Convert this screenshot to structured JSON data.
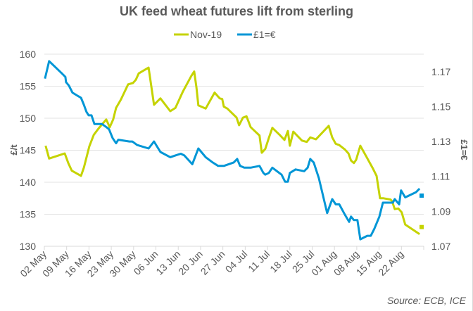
{
  "chart_data": {
    "type": "line",
    "title": "UK feed wheat futures lift from sterling",
    "ylabel_left": "£/t",
    "ylabel_right": "£1=€",
    "source": "Source: ECB, ICE",
    "legend_position": "top-center",
    "grid": true,
    "ylim_left": [
      130,
      160
    ],
    "ylim_right": [
      1.07,
      1.18
    ],
    "yticks_left": [
      "130",
      "135",
      "140",
      "145",
      "150",
      "155",
      "160"
    ],
    "yticks_right": [
      "1.07",
      "1.09",
      "1.11",
      "1.13",
      "1.15",
      "1.17"
    ],
    "x_start_date": "02 May",
    "x_range_days": [
      0,
      119
    ],
    "x_tick_labels": [
      "02 May",
      "09 May",
      "16 May",
      "23 May",
      "30 May",
      "06 Jun",
      "13 Jun",
      "20 Jun",
      "27 Jun",
      "04 Jul",
      "11 Jul",
      "18 Jul",
      "25 Jul",
      "01 Aug",
      "08 Aug",
      "15 Aug",
      "22 Aug"
    ],
    "series": [
      {
        "name": "Nov-19",
        "axis": "left",
        "color": "#c5d300",
        "days": [
          0.4,
          1.5,
          6.4,
          7.5,
          8.6,
          11.5,
          12.4,
          14.1,
          15.5,
          17,
          19.4,
          20.5,
          21.6,
          22.5,
          24,
          26.3,
          27.8,
          28.7,
          29.6,
          32.7,
          34.4,
          36.4,
          39.5,
          41.1,
          43.5,
          46.1,
          47,
          47.7,
          48.3,
          50.6,
          53.4,
          55,
          55.8,
          56.3,
          57.4,
          60.3,
          61.1,
          62.3,
          63.4,
          64.7,
          67.5,
          68.2,
          69.3,
          70.4,
          71.5,
          74,
          75.3,
          76.4,
          77,
          78.1,
          80.8,
          82.3,
          83.4,
          85.2,
          89.2,
          90.3,
          91.4,
          92.5,
          94.3,
          95.4,
          96.2,
          97.1,
          97.8,
          99.1,
          100.9,
          103.1,
          104.2,
          105.3,
          106.4,
          108.6,
          109.1,
          109.9,
          111,
          112.1,
          113.2,
          117.7
        ],
        "values": [
          145.7,
          143.7,
          144.5,
          143.0,
          141.8,
          141.0,
          142.3,
          145.6,
          147.4,
          148.4,
          149.8,
          148.6,
          149.8,
          151.6,
          152.9,
          155.3,
          155.5,
          156.0,
          157.0,
          157.9,
          152.1,
          153.1,
          151.1,
          151.6,
          154.2,
          156.6,
          157.3,
          154.8,
          152.0,
          151.5,
          154.0,
          153.1,
          153.0,
          151.8,
          151.5,
          150.1,
          148.9,
          150.1,
          150.3,
          148.6,
          147.3,
          144.6,
          145.2,
          146.9,
          148.5,
          147.3,
          146.6,
          148.0,
          145.7,
          147.9,
          146.5,
          146.3,
          147.0,
          146.7,
          148.8,
          147.0,
          146.0,
          145.8,
          145.1,
          144.5,
          143.4,
          143.0,
          143.5,
          145.7,
          144.1,
          142.1,
          141.0,
          137.5,
          137.5,
          137.3,
          137.0,
          135.8,
          135.9,
          135.3,
          133.4,
          131.9
        ],
        "latest_marker": 133.0
      },
      {
        "name": "£1=€",
        "axis": "right",
        "color": "#0096d6",
        "days": [
          0.2,
          1.5,
          5.5,
          6.6,
          6.8,
          7.7,
          8.8,
          10.6,
          11.5,
          12.4,
          13.2,
          13.9,
          14.8,
          15.7,
          18.1,
          19.6,
          20.3,
          21.4,
          22.5,
          23.2,
          26.7,
          27.6,
          29.1,
          32.7,
          34.4,
          36.4,
          39.5,
          41.1,
          42.8,
          43.9,
          46.4,
          48.3,
          50.6,
          52.8,
          54.5,
          56.3,
          57.8,
          59.4,
          60.5,
          61.4,
          62.7,
          64.7,
          67.5,
          68.7,
          69.3,
          70.4,
          71.5,
          73.7,
          74.4,
          75.5,
          76.4,
          77,
          78.8,
          81.5,
          82.6,
          83.4,
          84.5,
          86.1,
          88.7,
          90.3,
          91.4,
          92.5,
          94.3,
          95.6,
          96.2,
          97.1,
          98.2,
          99.1,
          101.3,
          102.4,
          103.5,
          105.1,
          106.2,
          107.5,
          109.3,
          109.9,
          111.3,
          111.9,
          113.2,
          116.6,
          117.7
        ],
        "values": [
          1.166,
          1.176,
          1.169,
          1.167,
          1.164,
          1.162,
          1.158,
          1.156,
          1.155,
          1.151,
          1.147,
          1.145,
          1.145,
          1.14,
          1.14,
          1.138,
          1.137,
          1.132,
          1.129,
          1.131,
          1.13,
          1.13,
          1.128,
          1.126,
          1.13,
          1.124,
          1.121,
          1.122,
          1.123,
          1.122,
          1.117,
          1.126,
          1.121,
          1.118,
          1.116,
          1.116,
          1.117,
          1.118,
          1.12,
          1.116,
          1.115,
          1.115,
          1.116,
          1.112,
          1.111,
          1.112,
          1.115,
          1.112,
          1.111,
          1.107,
          1.107,
          1.112,
          1.114,
          1.113,
          1.115,
          1.12,
          1.118,
          1.109,
          1.089,
          1.097,
          1.094,
          1.094,
          1.088,
          1.084,
          1.087,
          1.085,
          1.085,
          1.074,
          1.076,
          1.076,
          1.08,
          1.087,
          1.095,
          1.095,
          1.095,
          1.097,
          1.094,
          1.102,
          1.098,
          1.101,
          1.103
        ],
        "latest_marker": 1.099
      }
    ]
  }
}
